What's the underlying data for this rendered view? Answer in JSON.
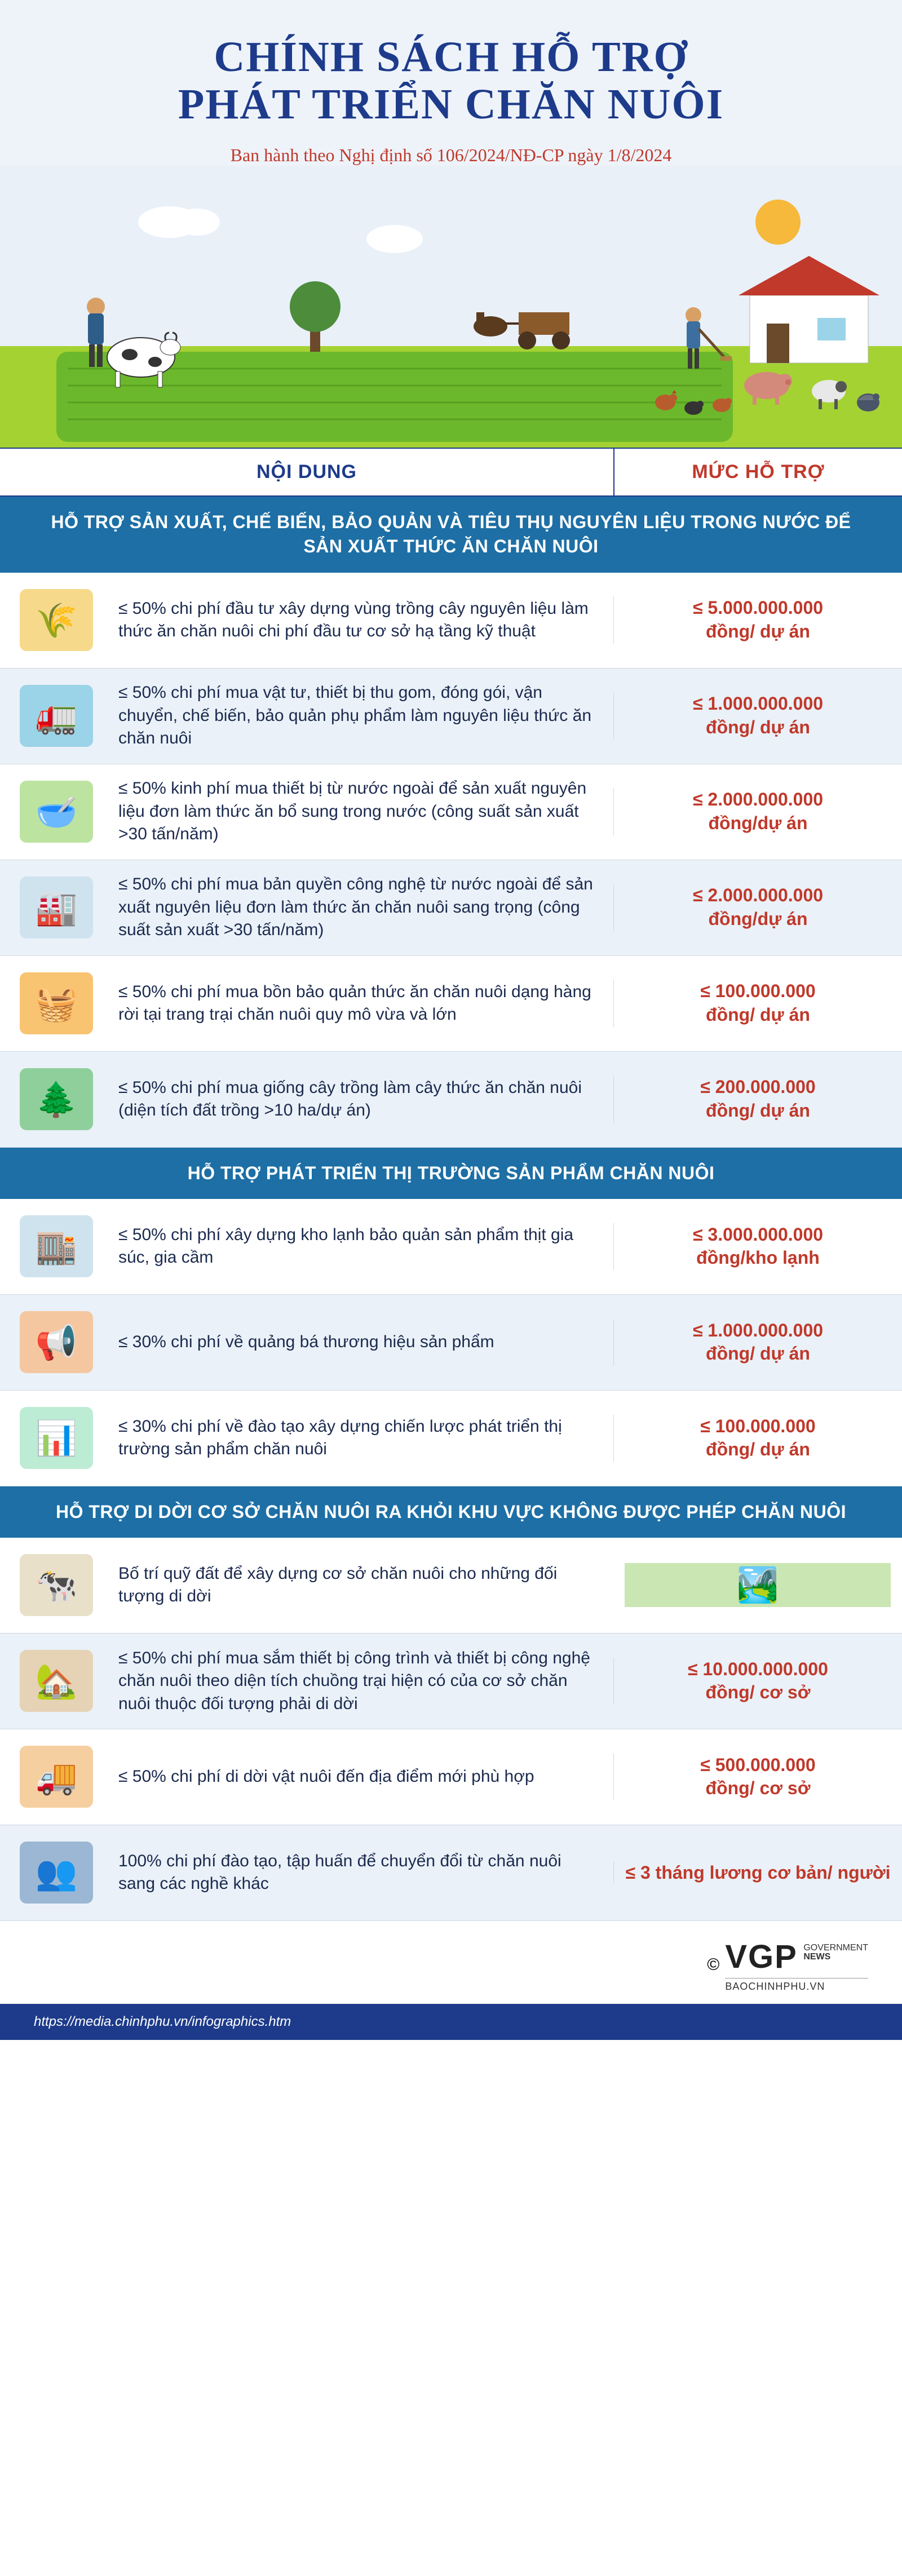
{
  "header": {
    "title_line1": "CHÍNH SÁCH HỖ TRỢ",
    "title_line2": "PHÁT TRIỂN CHĂN NUÔI",
    "subtitle": "Ban hành theo Nghị định số 106/2024/NĐ-CP ngày 1/8/2024"
  },
  "colheader": {
    "left": "NỘI DUNG",
    "right": "MỨC HỖ TRỢ"
  },
  "scene": {
    "sky_color": "#e9f0f8",
    "grass_color": "#a4d232",
    "field_color": "#6cb82c",
    "sun_color": "#f6b93b",
    "house_roof": "#c0392b",
    "house_wall": "#ffffff",
    "cow_body": "#ffffff",
    "pig_color": "#d48a7a",
    "sheep_color": "#e8e8e8"
  },
  "sections": [
    {
      "banner": "HỖ TRỢ SẢN XUẤT, CHẾ BIẾN, BẢO QUẢN VÀ TIÊU THỤ NGUYÊN LIỆU TRONG NƯỚC ĐỂ SẢN XUẤT THỨC ĂN CHĂN NUÔI",
      "rows": [
        {
          "icon_bg": "#f6d98a",
          "icon_glyph": "🌾",
          "desc": "≤ 50% chi phí đầu tư xây dựng vùng trồng cây nguyên liệu làm thức ăn chăn nuôi chi phí đầu tư cơ sở hạ tầng kỹ thuật",
          "amount": "≤ 5.000.000.000 đồng/ dự án"
        },
        {
          "icon_bg": "#9bd3e8",
          "icon_glyph": "🚛",
          "desc": "≤ 50% chi phí mua vật tư, thiết bị thu gom, đóng gói, vận chuyển, chế biến, bảo quản phụ phẩm làm nguyên liệu thức ăn chăn nuôi",
          "amount": "≤ 1.000.000.000 đồng/ dự án"
        },
        {
          "icon_bg": "#bde3a1",
          "icon_glyph": "🥣",
          "desc": "≤ 50% kinh phí mua thiết bị từ nước ngoài để sản xuất nguyên liệu đơn làm thức ăn bổ sung trong nước (công suất sản xuất >30 tấn/năm)",
          "amount": "≤ 2.000.000.000 đồng/dự án"
        },
        {
          "icon_bg": "#cfe3ef",
          "icon_glyph": "🏭",
          "desc": "≤ 50% chi phí mua bản quyền công nghệ từ nước ngoài để sản xuất nguyên liệu đơn làm thức ăn chăn nuôi sang trọng (công suất sản xuất >30 tấn/năm)",
          "amount": "≤ 2.000.000.000 đồng/dự án"
        },
        {
          "icon_bg": "#f8c471",
          "icon_glyph": "🧺",
          "desc": "≤ 50% chi phí mua bồn bảo quản thức ăn chăn nuôi dạng hàng rời tại trang trại chăn nuôi quy mô vừa và lớn",
          "amount": "≤ 100.000.000 đồng/ dự án"
        },
        {
          "icon_bg": "#8fcf9b",
          "icon_glyph": "🌲",
          "desc": "≤ 50% chi phí mua giống cây trồng làm cây thức ăn chăn nuôi (diện tích đất trồng >10 ha/dự án)",
          "amount": "≤ 200.000.000 đồng/ dự án"
        }
      ]
    },
    {
      "banner": "HỖ TRỢ PHÁT TRIỂN THỊ TRƯỜNG SẢN PHẨM CHĂN NUÔI",
      "rows": [
        {
          "icon_bg": "#cfe3ef",
          "icon_glyph": "🏬",
          "desc": "≤ 50% chi phí xây dựng kho lạnh bảo quản sản phẩm thịt gia súc, gia cầm",
          "amount": "≤ 3.000.000.000 đồng/kho lạnh"
        },
        {
          "icon_bg": "#f4c7a1",
          "icon_glyph": "📢",
          "desc": "≤ 30% chi phí về quảng bá thương hiệu sản phẩm",
          "amount": "≤ 1.000.000.000 đồng/ dự án"
        },
        {
          "icon_bg": "#bdecd4",
          "icon_glyph": "📊",
          "desc": "≤ 30% chi phí về đào tạo xây dựng chiến lược phát triển thị trường sản phẩm chăn nuôi",
          "amount": "≤ 100.000.000 đồng/ dự án"
        }
      ]
    },
    {
      "banner": "HỖ TRỢ DI DỜI CƠ SỞ CHĂN NUÔI RA KHỎI KHU VỰC KHÔNG ĐƯỢC PHÉP CHĂN NUÔI",
      "rows": [
        {
          "icon_bg": "#e8e0c8",
          "icon_glyph": "🐄",
          "desc": "Bố trí quỹ đất để xây dựng cơ sở chăn nuôi cho những đối tượng di dời",
          "amount_image": true,
          "amount_icon_bg": "#c9e6b3",
          "amount_icon_glyph": "🏞️"
        },
        {
          "icon_bg": "#e6d2b5",
          "icon_glyph": "🏡",
          "desc": "≤ 50% chi phí mua sắm thiết bị công trình và thiết bị công nghệ chăn nuôi theo diện tích chuồng trại hiện có của cơ sở chăn nuôi thuộc đối tượng phải di dời",
          "amount": "≤ 10.000.000.000 đồng/ cơ sở"
        },
        {
          "icon_bg": "#f6cfa0",
          "icon_glyph": "🚚",
          "desc": "≤ 50% chi phí di dời vật nuôi đến địa điểm mới phù hợp",
          "amount": "≤ 500.000.000 đồng/ cơ sở"
        },
        {
          "icon_bg": "#9bb7d4",
          "icon_glyph": "👥",
          "desc": "100% chi phí đào tạo, tập huấn để chuyển đổi từ chăn nuôi sang các nghề khác",
          "amount": "≤ 3 tháng lương cơ bản/ người"
        }
      ]
    }
  ],
  "footer": {
    "copyright_symbol": "©",
    "brand": "VGP",
    "brand_tag1": "GOVERNMENT",
    "brand_tag2": "NEWS",
    "site": "BAOCHINHPHU.VN"
  },
  "source": "https://media.chinhphu.vn/infographics.htm",
  "colors": {
    "title": "#1d3b8a",
    "accent": "#c0392b",
    "banner_bg": "#1d6fa5",
    "page_bg": "#e9f0f8",
    "row_alt": "#eaf1f8",
    "border": "#cfd8e3"
  }
}
